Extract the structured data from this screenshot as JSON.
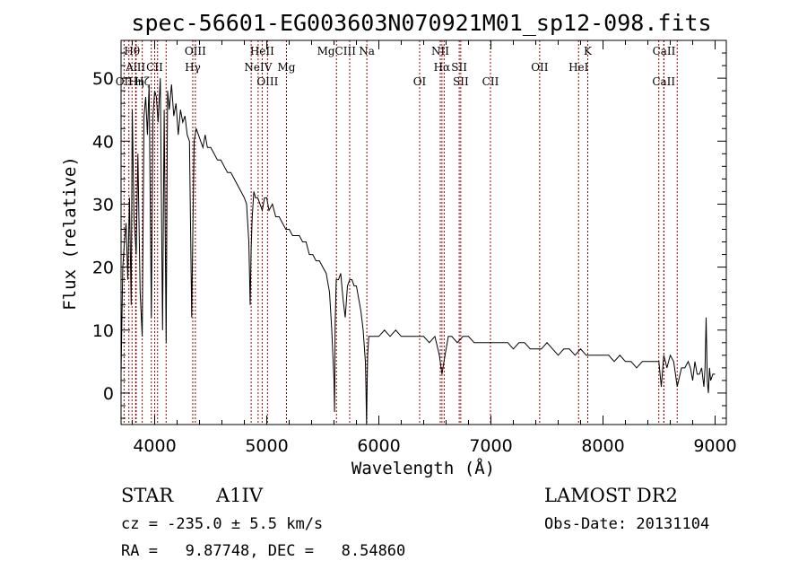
{
  "title": "spec-56601-EG003603N070921M01_sp12-098.fits",
  "footer": {
    "class": "STAR",
    "subclass": "A1IV",
    "survey": "LAMOST DR2",
    "cz": "cz = -235.0 ± 5.5 km/s",
    "obs_date": "Obs-Date: 20131104",
    "radec": "RA =   9.87748, DEC =   8.54860"
  },
  "chart_data": {
    "type": "line",
    "title": "spec-56601-EG003603N070921M01_sp12-098.fits",
    "xlabel": "Wavelength (Å)",
    "ylabel": "Flux (relative)",
    "xlim": [
      3700,
      9100
    ],
    "ylim": [
      -5,
      56
    ],
    "x_ticks": [
      4000,
      5000,
      6000,
      7000,
      8000,
      9000
    ],
    "y_ticks": [
      0,
      10,
      20,
      30,
      40,
      50
    ],
    "x_tick_labels": [
      "4000",
      "5000",
      "6000",
      "7000",
      "8000",
      "9000"
    ],
    "y_tick_labels": [
      "0",
      "10",
      "20",
      "30",
      "40",
      "50"
    ],
    "grid": false,
    "line_color": "#000000",
    "marker_color": "#a00000",
    "spectral_lines": [
      {
        "label": "Hθ",
        "x": 3798,
        "row": 1
      },
      {
        "label": "AlII",
        "x": 3830,
        "row": 2
      },
      {
        "label": "OII",
        "x": 3727,
        "row": 3
      },
      {
        "label": "Hη",
        "x": 3835,
        "row": 3
      },
      {
        "label": "Hζ",
        "x": 3889,
        "row": 3
      },
      {
        "label": "CII",
        "x": 4000,
        "row": 2
      },
      {
        "label": "OIII",
        "x": 4363,
        "row": 1
      },
      {
        "label": "Hγ",
        "x": 4340,
        "row": 2
      },
      {
        "label": "HeII",
        "x": 4959,
        "row": 1
      },
      {
        "label": "NeIV",
        "x": 4923,
        "row": 2
      },
      {
        "label": "OIII",
        "x": 5007,
        "row": 3
      },
      {
        "label": "Mg",
        "x": 5176,
        "row": 2
      },
      {
        "label": "MgCIII",
        "x": 5622,
        "row": 1
      },
      {
        "label": "Na",
        "x": 5893,
        "row": 1
      },
      {
        "label": "OI",
        "x": 6364,
        "row": 3
      },
      {
        "label": "NII",
        "x": 6548,
        "row": 1
      },
      {
        "label": "Hα",
        "x": 6563,
        "row": 2
      },
      {
        "label": "SII",
        "x": 6717,
        "row": 2
      },
      {
        "label": "SII",
        "x": 6731,
        "row": 3
      },
      {
        "label": "CII",
        "x": 6996,
        "row": 3
      },
      {
        "label": "OII",
        "x": 7435,
        "row": 2
      },
      {
        "label": "K",
        "x": 7864,
        "row": 1
      },
      {
        "label": "HeI",
        "x": 7782,
        "row": 2
      },
      {
        "label": "CaII",
        "x": 8544,
        "row": 1
      },
      {
        "label": "CaII",
        "x": 8542,
        "row": 3
      }
    ],
    "extra_marker_x": [
      3727,
      3770,
      3835,
      3889,
      3970,
      4026,
      4102,
      4340,
      4363,
      4861,
      4923,
      4959,
      5007,
      5176,
      5622,
      5740,
      5893,
      6364,
      6548,
      6563,
      6583,
      6717,
      6731,
      6996,
      7435,
      7782,
      7864,
      8498,
      8542,
      8662
    ],
    "series": [
      {
        "x": [
          3700,
          3715,
          3730,
          3745,
          3760,
          3775,
          3790,
          3800,
          3815,
          3835,
          3850,
          3870,
          3889,
          3905,
          3920,
          3935,
          3950,
          3970,
          3985,
          4000,
          4015,
          4030,
          4050,
          4070,
          4085,
          4102,
          4115,
          4130,
          4150,
          4170,
          4190,
          4210,
          4230,
          4250,
          4270,
          4290,
          4310,
          4330,
          4340,
          4352,
          4370,
          4390,
          4410,
          4430,
          4450,
          4470,
          4500,
          4530,
          4560,
          4590,
          4620,
          4650,
          4680,
          4710,
          4740,
          4770,
          4800,
          4820,
          4840,
          4852,
          4861,
          4870,
          4885,
          4900,
          4920,
          4940,
          4960,
          4980,
          5000,
          5020,
          5050,
          5080,
          5110,
          5140,
          5170,
          5200,
          5230,
          5260,
          5290,
          5320,
          5350,
          5380,
          5410,
          5440,
          5470,
          5500,
          5530,
          5560,
          5580,
          5600,
          5605,
          5610,
          5620,
          5640,
          5660,
          5680,
          5700,
          5720,
          5740,
          5760,
          5780,
          5800,
          5820,
          5840,
          5860,
          5880,
          5885,
          5890,
          5895,
          5900,
          5910,
          5920,
          5940,
          5960,
          5980,
          6000,
          6050,
          6100,
          6150,
          6200,
          6250,
          6300,
          6350,
          6400,
          6450,
          6500,
          6540,
          6563,
          6590,
          6620,
          6650,
          6700,
          6750,
          6800,
          6850,
          6900,
          6950,
          7000,
          7050,
          7100,
          7150,
          7200,
          7250,
          7300,
          7350,
          7400,
          7450,
          7500,
          7550,
          7600,
          7650,
          7700,
          7750,
          7800,
          7850,
          7900,
          7950,
          8000,
          8050,
          8100,
          8150,
          8200,
          8250,
          8300,
          8350,
          8400,
          8450,
          8498,
          8520,
          8542,
          8570,
          8600,
          8630,
          8662,
          8700,
          8730,
          8760,
          8780,
          8800,
          8820,
          8840,
          8860,
          8880,
          8900,
          8910,
          8920,
          8930,
          8940,
          8950,
          8960,
          8980,
          9000
        ],
        "y": [
          3,
          20,
          24,
          27,
          18,
          31,
          14,
          45,
          28,
          22,
          38,
          16,
          9,
          44,
          47,
          41,
          49,
          12,
          44,
          48,
          47,
          43,
          50,
          10,
          45,
          8,
          48,
          45,
          49,
          44,
          46,
          41,
          45,
          43,
          44,
          41,
          40,
          12,
          25,
          40,
          42,
          41,
          40,
          39,
          41,
          39,
          39,
          38,
          37,
          37,
          36,
          35,
          35,
          34,
          33,
          32,
          31,
          30,
          24,
          14,
          23,
          28,
          32,
          31,
          31,
          30,
          29,
          31,
          31,
          29,
          30,
          28,
          28,
          27,
          26,
          26,
          25,
          25,
          25,
          24,
          24,
          22,
          22,
          21,
          21,
          20,
          19,
          16,
          10,
          2,
          -3,
          11,
          18,
          18,
          19,
          15,
          12,
          17,
          18,
          18,
          17,
          17,
          15,
          13,
          10,
          5,
          1,
          -5,
          1,
          6,
          9,
          9,
          9,
          9,
          9,
          9,
          10,
          9,
          10,
          9,
          9,
          9,
          9,
          9,
          8,
          9,
          6,
          3,
          6,
          9,
          9,
          8,
          9,
          9,
          8,
          8,
          8,
          8,
          8,
          8,
          8,
          7,
          8,
          8,
          7,
          7,
          7,
          8,
          7,
          6,
          7,
          7,
          6,
          7,
          6,
          6,
          6,
          6,
          6,
          5,
          6,
          5,
          5,
          4,
          5,
          5,
          5,
          5,
          1,
          6,
          4,
          6,
          5,
          1,
          4,
          4,
          5,
          4,
          2,
          5,
          3,
          3,
          4,
          1,
          4,
          12,
          2,
          0,
          4,
          2,
          3,
          3
        ]
      }
    ]
  }
}
